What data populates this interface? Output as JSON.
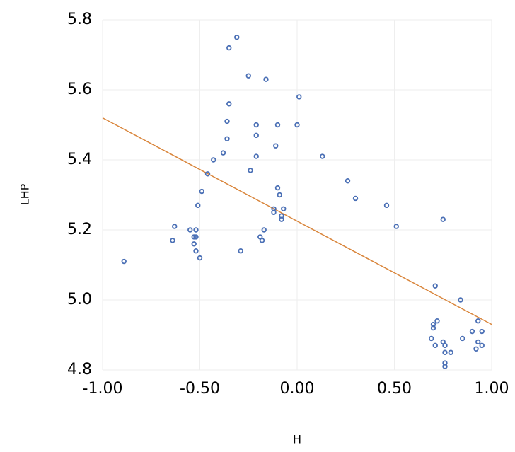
{
  "chart_data": {
    "type": "scatter",
    "x_label": "H",
    "y_label": "LHP",
    "xlim": [
      -1.0,
      1.0
    ],
    "ylim": [
      4.8,
      5.8
    ],
    "xticks": [
      {
        "value": -1.0,
        "label": "-1.00"
      },
      {
        "value": -0.5,
        "label": "-0.50"
      },
      {
        "value": 0,
        "label": "0.00"
      },
      {
        "value": 0.5,
        "label": "0.50"
      },
      {
        "value": 1.0,
        "label": "1.00"
      }
    ],
    "yticks": [
      4.8,
      {
        "value": 5.0,
        "label": "5.0"
      },
      5.2,
      5.4,
      5.6,
      5.8
    ],
    "grid": true,
    "series": [
      {
        "color": "#4a6fb5",
        "x": [
          -0.89,
          -0.63,
          -0.64,
          -0.55,
          -0.52,
          -0.53,
          -0.52,
          -0.53,
          -0.52,
          -0.5,
          -0.51,
          -0.49,
          -0.46,
          -0.43,
          -0.38,
          -0.36,
          -0.36,
          -0.35,
          -0.35,
          -0.31,
          -0.29,
          -0.25,
          -0.24,
          -0.21,
          -0.21,
          -0.21,
          -0.19,
          -0.18,
          -0.17,
          -0.16,
          -0.11,
          -0.1,
          -0.12,
          -0.12,
          -0.1,
          -0.09,
          -0.08,
          -0.08,
          -0.07,
          0.0,
          0.01,
          0.13,
          0.26,
          0.3,
          0.46,
          0.51,
          0.75,
          0.71,
          0.72,
          0.7,
          0.7,
          0.69,
          0.71,
          0.75,
          0.76,
          0.76,
          0.79,
          0.76,
          0.76,
          0.84,
          0.85,
          0.9,
          0.93,
          0.95,
          0.92,
          0.93,
          0.95
        ],
        "y": [
          5.11,
          5.21,
          5.17,
          5.2,
          5.2,
          5.18,
          5.18,
          5.16,
          5.14,
          5.12,
          5.27,
          5.31,
          5.36,
          5.4,
          5.42,
          5.46,
          5.51,
          5.56,
          5.72,
          5.75,
          5.14,
          5.64,
          5.37,
          5.5,
          5.47,
          5.41,
          5.18,
          5.17,
          5.2,
          5.63,
          5.44,
          5.5,
          5.26,
          5.25,
          5.32,
          5.3,
          5.24,
          5.23,
          5.26,
          5.5,
          5.58,
          5.41,
          5.34,
          5.29,
          5.27,
          5.21,
          5.23,
          5.04,
          4.94,
          4.93,
          4.92,
          4.89,
          4.87,
          4.88,
          4.87,
          4.85,
          4.85,
          4.82,
          4.81,
          5.0,
          4.89,
          4.91,
          4.94,
          4.91,
          4.86,
          4.88,
          4.87
        ]
      }
    ],
    "trendline": {
      "color": "#d9853b",
      "x": [
        -1.0,
        1.0
      ],
      "y": [
        5.52,
        4.93
      ]
    }
  }
}
